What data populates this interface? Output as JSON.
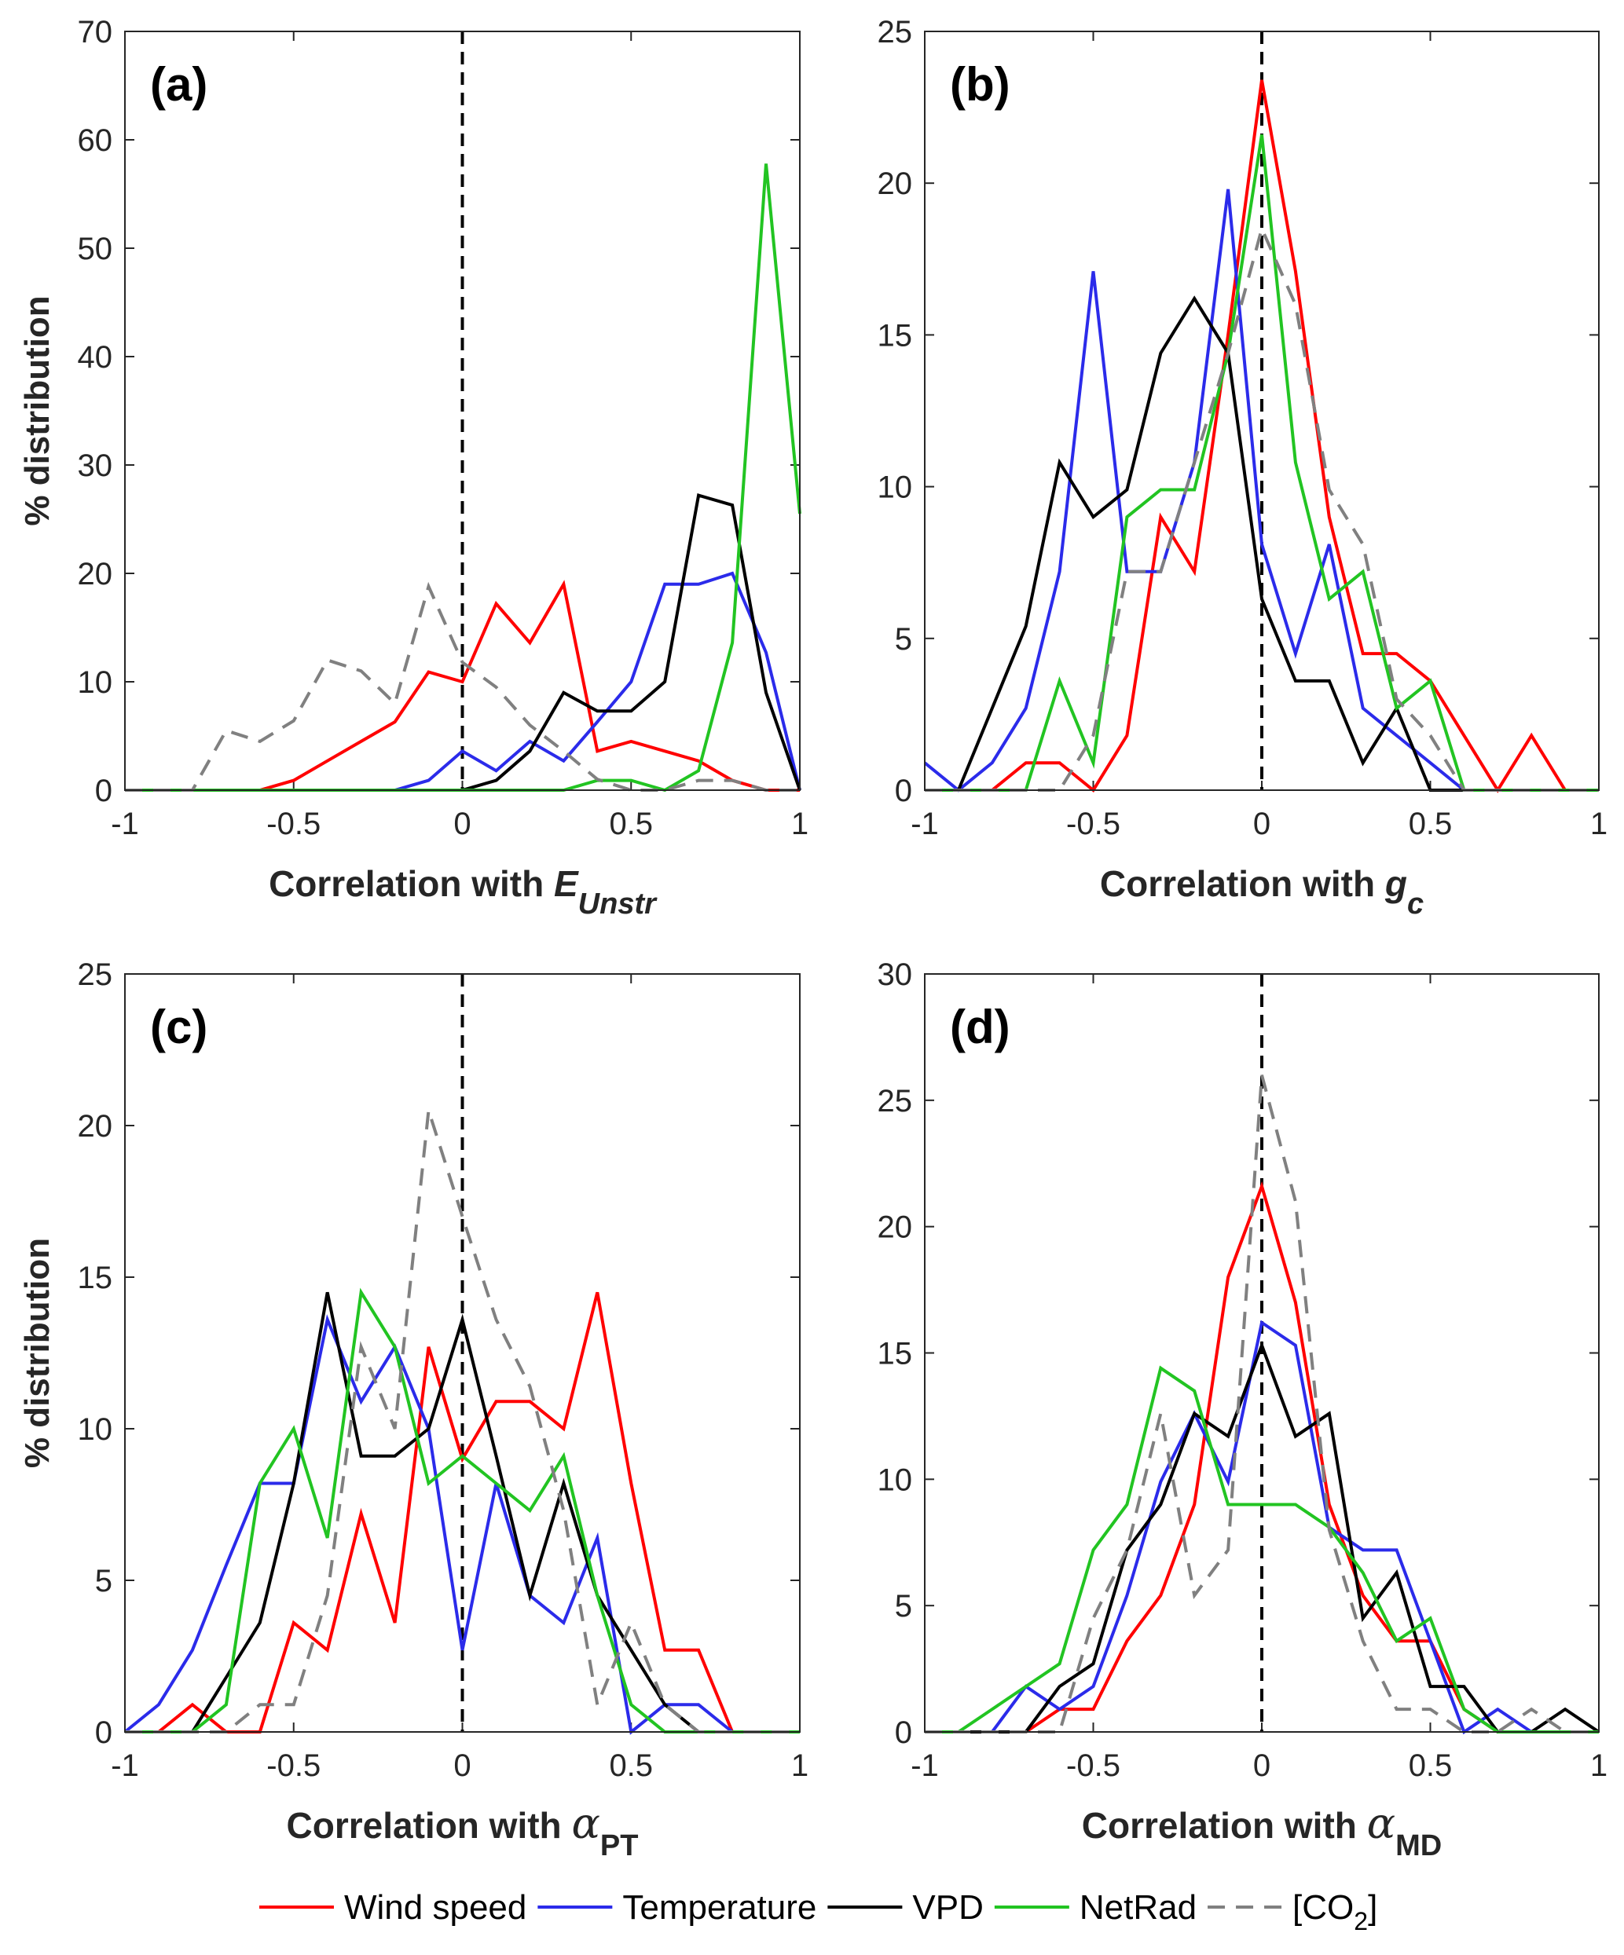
{
  "colors": {
    "Wind speed": "#ff0000",
    "Temperature": "#2b2bea",
    "VPD": "#000000",
    "NetRad": "#22c422",
    "[CO2]": "#808080"
  },
  "legend": {
    "entries": [
      {
        "name": "Wind speed",
        "label": "Wind speed",
        "style": "solid"
      },
      {
        "name": "Temperature",
        "label": "Temperature",
        "style": "solid"
      },
      {
        "name": "VPD",
        "label": "VPD",
        "style": "solid"
      },
      {
        "name": "NetRad",
        "label": "NetRad",
        "style": "solid"
      },
      {
        "name": "[CO2]",
        "label_main": "[CO",
        "label_sub": "2",
        "label_end": "]",
        "style": "dashed"
      }
    ],
    "placement": "bottom"
  },
  "chart_data": [
    {
      "type": "line",
      "panel_label": "(a)",
      "ylabel": "% distribution",
      "xlabel_prefix": "Correlation with",
      "xlabel_symbol": "E",
      "xlabel_sub": "Unstr",
      "xlim": [
        -1,
        1
      ],
      "ylim": [
        0,
        70
      ],
      "xticks": [
        "-1",
        "-0.5",
        "0",
        "0.5",
        "1"
      ],
      "yticks": [
        "0",
        "10",
        "20",
        "30",
        "40",
        "50",
        "60",
        "70"
      ],
      "vline": 0,
      "x": [
        -1,
        -0.9,
        -0.8,
        -0.7,
        -0.6,
        -0.5,
        -0.4,
        -0.3,
        -0.2,
        -0.1,
        0,
        0.1,
        0.2,
        0.3,
        0.4,
        0.5,
        0.6,
        0.7,
        0.8,
        0.9,
        1
      ],
      "series": [
        {
          "name": "Wind speed",
          "values": [
            0,
            0,
            0,
            0,
            0,
            0.9,
            2.7,
            4.5,
            6.3,
            10.9,
            10,
            17.2,
            13.6,
            19,
            3.6,
            4.5,
            3.6,
            2.7,
            0.9,
            0,
            0
          ]
        },
        {
          "name": "Temperature",
          "values": [
            0,
            0,
            0,
            0,
            0,
            0,
            0,
            0,
            0,
            0.9,
            3.6,
            1.8,
            4.5,
            2.7,
            6.3,
            10,
            19,
            19,
            20,
            12.7,
            0
          ]
        },
        {
          "name": "VPD",
          "values": [
            0,
            0,
            0,
            0,
            0,
            0,
            0,
            0,
            0,
            0,
            0,
            0.9,
            3.6,
            9,
            7.3,
            7.3,
            10,
            27.2,
            26.3,
            9,
            0
          ]
        },
        {
          "name": "NetRad",
          "values": [
            0,
            0,
            0,
            0,
            0,
            0,
            0,
            0,
            0,
            0,
            0,
            0,
            0,
            0,
            0.9,
            0.9,
            0,
            1.8,
            13.6,
            57.8,
            25.5
          ]
        },
        {
          "name": "[CO2]",
          "values": [
            0,
            0,
            0,
            5.5,
            4.5,
            6.4,
            12,
            11,
            8,
            18.8,
            11.8,
            9.5,
            6,
            3.6,
            1,
            0,
            0,
            0.9,
            0.9,
            0,
            0
          ]
        }
      ]
    },
    {
      "type": "line",
      "panel_label": "(b)",
      "ylabel": "",
      "xlabel_prefix": "Correlation with",
      "xlabel_symbol": "g",
      "xlabel_sub": "c",
      "xlim": [
        -1,
        1
      ],
      "ylim": [
        0,
        25
      ],
      "xticks": [
        "-1",
        "-0.5",
        "0",
        "0.5",
        "1"
      ],
      "yticks": [
        "0",
        "5",
        "10",
        "15",
        "20",
        "25"
      ],
      "vline": 0,
      "x": [
        -1,
        -0.9,
        -0.8,
        -0.7,
        -0.6,
        -0.5,
        -0.4,
        -0.3,
        -0.2,
        -0.1,
        0,
        0.1,
        0.2,
        0.3,
        0.4,
        0.5,
        0.6,
        0.7,
        0.8,
        0.9,
        1
      ],
      "series": [
        {
          "name": "Wind speed",
          "values": [
            0,
            0,
            0,
            0.9,
            0.9,
            0,
            1.8,
            9,
            7.2,
            15,
            23.4,
            17.1,
            9,
            4.5,
            4.5,
            3.6,
            1.8,
            0,
            1.8,
            0,
            0
          ]
        },
        {
          "name": "Temperature",
          "values": [
            0.9,
            0,
            0.9,
            2.7,
            7.2,
            17.1,
            7.2,
            7.2,
            10.8,
            19.8,
            8.1,
            4.5,
            8.1,
            2.7,
            1.8,
            0.9,
            0,
            0,
            0,
            0,
            0
          ]
        },
        {
          "name": "VPD",
          "values": [
            0,
            0,
            2.7,
            5.4,
            10.8,
            9,
            9.9,
            14.4,
            16.2,
            14.4,
            6.3,
            3.6,
            3.6,
            0.9,
            2.7,
            0,
            0,
            0,
            0,
            0,
            0
          ]
        },
        {
          "name": "NetRad",
          "values": [
            0,
            0,
            0,
            0,
            3.6,
            0.9,
            9,
            9.9,
            9.9,
            14.4,
            21.6,
            10.8,
            6.3,
            7.2,
            2.7,
            3.6,
            0,
            0,
            0,
            0,
            0
          ]
        },
        {
          "name": "[CO2]",
          "values": [
            0,
            0,
            0,
            0,
            0,
            1.8,
            7.2,
            7.2,
            10.8,
            14.4,
            18.5,
            16,
            9.9,
            8.1,
            3,
            1.8,
            0,
            0,
            0,
            0,
            0
          ]
        }
      ]
    },
    {
      "type": "line",
      "panel_label": "(c)",
      "ylabel": "% distribution",
      "xlabel_prefix": "Correlation with",
      "xlabel_symbol": "α",
      "xlabel_sub": "PT",
      "xlim": [
        -1,
        1
      ],
      "ylim": [
        0,
        25
      ],
      "xticks": [
        "-1",
        "-0.5",
        "0",
        "0.5",
        "1"
      ],
      "yticks": [
        "0",
        "5",
        "10",
        "15",
        "20",
        "25"
      ],
      "vline": 0,
      "x": [
        -1,
        -0.9,
        -0.8,
        -0.7,
        -0.6,
        -0.5,
        -0.4,
        -0.3,
        -0.2,
        -0.1,
        0,
        0.1,
        0.2,
        0.3,
        0.4,
        0.5,
        0.6,
        0.7,
        0.8,
        0.9,
        1
      ],
      "series": [
        {
          "name": "Wind speed",
          "values": [
            0,
            0,
            0.9,
            0,
            0,
            3.6,
            2.7,
            7.2,
            3.6,
            12.7,
            9,
            10.9,
            10.9,
            10,
            14.5,
            8.2,
            2.7,
            2.7,
            0,
            0,
            0
          ]
        },
        {
          "name": "Temperature",
          "values": [
            0,
            0.9,
            2.7,
            5.5,
            8.2,
            8.2,
            13.6,
            10.9,
            12.7,
            10,
            2.7,
            8.2,
            4.5,
            3.6,
            6.4,
            0,
            0.9,
            0.9,
            0,
            0,
            0
          ]
        },
        {
          "name": "VPD",
          "values": [
            0,
            0,
            0,
            1.8,
            3.6,
            8.2,
            14.5,
            9.1,
            9.1,
            10,
            13.6,
            9.1,
            4.5,
            8.2,
            4.5,
            2.7,
            0.9,
            0,
            0,
            0,
            0
          ]
        },
        {
          "name": "NetRad",
          "values": [
            0,
            0,
            0,
            0.9,
            8.2,
            10,
            6.4,
            14.5,
            12.7,
            8.2,
            9.1,
            8.2,
            7.3,
            9.1,
            4.5,
            0.9,
            0,
            0,
            0,
            0,
            0
          ]
        },
        {
          "name": "[CO2]",
          "values": [
            0,
            0,
            0,
            0,
            0.9,
            0.9,
            4.5,
            12.7,
            10,
            20.5,
            17,
            13.6,
            11.4,
            7.3,
            0.9,
            3.6,
            0.9,
            0,
            0,
            0,
            0
          ]
        }
      ]
    },
    {
      "type": "line",
      "panel_label": "(d)",
      "ylabel": "",
      "xlabel_prefix": "Correlation with",
      "xlabel_symbol": "α",
      "xlabel_sub": "MD",
      "xlim": [
        -1,
        1
      ],
      "ylim": [
        0,
        30
      ],
      "xticks": [
        "-1",
        "-0.5",
        "0",
        "0.5",
        "1"
      ],
      "yticks": [
        "0",
        "5",
        "10",
        "15",
        "20",
        "25",
        "30"
      ],
      "vline": 0,
      "x": [
        -1,
        -0.9,
        -0.8,
        -0.7,
        -0.6,
        -0.5,
        -0.4,
        -0.3,
        -0.2,
        -0.1,
        0,
        0.1,
        0.2,
        0.3,
        0.4,
        0.5,
        0.6,
        0.7,
        0.8,
        0.9,
        1
      ],
      "series": [
        {
          "name": "Wind speed",
          "values": [
            0,
            0,
            0,
            0,
            0.9,
            0.9,
            3.6,
            5.4,
            9,
            18,
            21.6,
            17,
            9,
            5.4,
            3.6,
            3.6,
            0.9,
            0,
            0,
            0,
            0
          ]
        },
        {
          "name": "Temperature",
          "values": [
            0,
            0,
            0,
            1.8,
            0.9,
            1.8,
            5.4,
            9.9,
            12.6,
            9.9,
            16.2,
            15.3,
            8.1,
            7.2,
            7.2,
            3.6,
            0,
            0.9,
            0,
            0,
            0
          ]
        },
        {
          "name": "VPD",
          "values": [
            0,
            0,
            0,
            0,
            1.8,
            2.7,
            7.2,
            9,
            12.6,
            11.7,
            15.3,
            11.7,
            12.6,
            4.5,
            6.3,
            1.8,
            1.8,
            0,
            0,
            0.9,
            0
          ]
        },
        {
          "name": "NetRad",
          "values": [
            0,
            0,
            0.9,
            1.8,
            2.7,
            7.2,
            9,
            14.4,
            13.5,
            9,
            9,
            9,
            8.1,
            6.3,
            3.6,
            4.5,
            0.9,
            0,
            0,
            0,
            0
          ]
        },
        {
          "name": "[CO2]",
          "values": [
            0,
            0,
            0,
            0,
            0,
            4.5,
            7.2,
            12.6,
            5.4,
            7.2,
            26,
            21,
            8,
            3.6,
            0.9,
            0.9,
            0,
            0,
            0.9,
            0,
            0
          ]
        }
      ]
    }
  ]
}
